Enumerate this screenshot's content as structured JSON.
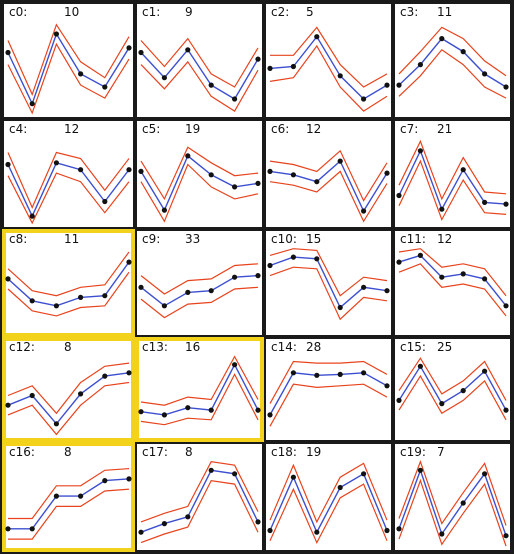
{
  "chart_data": {
    "type": "line",
    "layout": {
      "rows": 5,
      "cols": 4
    },
    "colors": {
      "mean_line": "#3c4fd0",
      "band_line": "#e8431c",
      "marker": "#111111",
      "highlight": "#f2d21b",
      "grid_background": "#1a1a1a"
    },
    "ylim": [
      0,
      1
    ],
    "clusters": [
      {
        "label": "c0:",
        "count": "10",
        "highlighted": false,
        "mean": [
          0.65,
          0.1,
          0.85,
          0.42,
          0.28,
          0.7
        ],
        "upper": [
          0.78,
          0.2,
          0.95,
          0.55,
          0.38,
          0.82
        ],
        "lower": [
          0.52,
          0.0,
          0.74,
          0.3,
          0.16,
          0.58
        ]
      },
      {
        "label": "c1:",
        "count": "9",
        "highlighted": false,
        "mean": [
          0.65,
          0.38,
          0.68,
          0.3,
          0.15,
          0.58
        ],
        "upper": [
          0.78,
          0.5,
          0.8,
          0.42,
          0.28,
          0.7
        ],
        "lower": [
          0.52,
          0.26,
          0.55,
          0.18,
          0.02,
          0.46
        ]
      },
      {
        "label": "c2:",
        "count": "5",
        "highlighted": false,
        "mean": [
          0.48,
          0.5,
          0.82,
          0.4,
          0.15,
          0.3
        ],
        "upper": [
          0.62,
          0.62,
          0.92,
          0.52,
          0.28,
          0.42
        ],
        "lower": [
          0.34,
          0.38,
          0.72,
          0.28,
          0.02,
          0.18
        ]
      },
      {
        "label": "c3:",
        "count": "11",
        "highlighted": false,
        "mean": [
          0.3,
          0.52,
          0.8,
          0.66,
          0.42,
          0.28
        ],
        "upper": [
          0.42,
          0.66,
          0.92,
          0.8,
          0.56,
          0.4
        ],
        "lower": [
          0.18,
          0.4,
          0.68,
          0.52,
          0.28,
          0.16
        ]
      },
      {
        "label": "c4:",
        "count": "12",
        "highlighted": false,
        "mean": [
          0.68,
          0.08,
          0.7,
          0.62,
          0.25,
          0.62
        ],
        "upper": [
          0.82,
          0.18,
          0.82,
          0.75,
          0.38,
          0.75
        ],
        "lower": [
          0.55,
          0.0,
          0.58,
          0.48,
          0.12,
          0.48
        ]
      },
      {
        "label": "c5:",
        "count": "19",
        "highlighted": false,
        "mean": [
          0.6,
          0.15,
          0.78,
          0.56,
          0.42,
          0.46
        ],
        "upper": [
          0.72,
          0.28,
          0.88,
          0.7,
          0.55,
          0.58
        ],
        "lower": [
          0.48,
          0.02,
          0.68,
          0.42,
          0.28,
          0.34
        ]
      },
      {
        "label": "c6:",
        "count": "12",
        "highlighted": false,
        "mean": [
          0.6,
          0.56,
          0.48,
          0.72,
          0.14,
          0.58
        ],
        "upper": [
          0.72,
          0.68,
          0.6,
          0.84,
          0.26,
          0.7
        ],
        "lower": [
          0.48,
          0.44,
          0.36,
          0.6,
          0.02,
          0.46
        ]
      },
      {
        "label": "c7:",
        "count": "21",
        "highlighted": false,
        "mean": [
          0.32,
          0.84,
          0.16,
          0.62,
          0.24,
          0.22
        ],
        "upper": [
          0.44,
          0.95,
          0.28,
          0.76,
          0.36,
          0.34
        ],
        "lower": [
          0.2,
          0.72,
          0.04,
          0.5,
          0.12,
          0.1
        ]
      },
      {
        "label": "c8:",
        "count": "11",
        "highlighted": true,
        "mean": [
          0.62,
          0.36,
          0.3,
          0.4,
          0.42,
          0.82
        ],
        "upper": [
          0.74,
          0.48,
          0.42,
          0.52,
          0.55,
          0.94
        ],
        "lower": [
          0.5,
          0.24,
          0.18,
          0.28,
          0.3,
          0.7
        ]
      },
      {
        "label": "c9:",
        "count": "33",
        "highlighted": false,
        "mean": [
          0.52,
          0.3,
          0.46,
          0.48,
          0.64,
          0.66
        ],
        "upper": [
          0.66,
          0.44,
          0.6,
          0.62,
          0.78,
          0.8
        ],
        "lower": [
          0.38,
          0.16,
          0.32,
          0.34,
          0.5,
          0.52
        ]
      },
      {
        "label": "c10:",
        "count": "15",
        "highlighted": false,
        "mean": [
          0.78,
          0.88,
          0.86,
          0.28,
          0.52,
          0.48
        ],
        "upper": [
          0.9,
          0.98,
          0.96,
          0.42,
          0.64,
          0.6
        ],
        "lower": [
          0.66,
          0.76,
          0.74,
          0.14,
          0.4,
          0.36
        ]
      },
      {
        "label": "c11:",
        "count": "12",
        "highlighted": false,
        "mean": [
          0.82,
          0.9,
          0.64,
          0.68,
          0.62,
          0.3
        ],
        "upper": [
          0.94,
          0.98,
          0.76,
          0.8,
          0.74,
          0.42
        ],
        "lower": [
          0.7,
          0.8,
          0.52,
          0.56,
          0.5,
          0.18
        ]
      },
      {
        "label": "c12:",
        "count": "8",
        "highlighted": true,
        "mean": [
          0.38,
          0.5,
          0.15,
          0.52,
          0.74,
          0.78
        ],
        "upper": [
          0.5,
          0.62,
          0.28,
          0.66,
          0.86,
          0.9
        ],
        "lower": [
          0.26,
          0.38,
          0.02,
          0.38,
          0.62,
          0.66
        ]
      },
      {
        "label": "c13:",
        "count": "16",
        "highlighted": true,
        "mean": [
          0.3,
          0.26,
          0.35,
          0.32,
          0.88,
          0.32
        ],
        "upper": [
          0.42,
          0.38,
          0.48,
          0.45,
          0.98,
          0.45
        ],
        "lower": [
          0.18,
          0.14,
          0.22,
          0.2,
          0.76,
          0.2
        ]
      },
      {
        "label": "c14:",
        "count": "28",
        "highlighted": false,
        "mean": [
          0.26,
          0.78,
          0.75,
          0.76,
          0.78,
          0.62
        ],
        "upper": [
          0.4,
          0.92,
          0.9,
          0.9,
          0.92,
          0.76
        ],
        "lower": [
          0.12,
          0.64,
          0.6,
          0.62,
          0.64,
          0.48
        ]
      },
      {
        "label": "c15:",
        "count": "25",
        "highlighted": false,
        "mean": [
          0.44,
          0.86,
          0.4,
          0.56,
          0.8,
          0.32
        ],
        "upper": [
          0.56,
          0.96,
          0.52,
          0.68,
          0.92,
          0.44
        ],
        "lower": [
          0.32,
          0.74,
          0.28,
          0.44,
          0.68,
          0.2
        ]
      },
      {
        "label": "c16:",
        "count": "8",
        "highlighted": true,
        "mean": [
          0.2,
          0.2,
          0.58,
          0.58,
          0.76,
          0.78
        ],
        "upper": [
          0.32,
          0.32,
          0.7,
          0.7,
          0.88,
          0.9
        ],
        "lower": [
          0.08,
          0.08,
          0.46,
          0.46,
          0.64,
          0.66
        ]
      },
      {
        "label": "c17:",
        "count": "8",
        "highlighted": false,
        "mean": [
          0.16,
          0.26,
          0.34,
          0.88,
          0.84,
          0.28
        ],
        "upper": [
          0.28,
          0.38,
          0.46,
          0.98,
          0.94,
          0.4
        ],
        "lower": [
          0.04,
          0.14,
          0.22,
          0.76,
          0.72,
          0.16
        ]
      },
      {
        "label": "c18:",
        "count": "19",
        "highlighted": false,
        "mean": [
          0.18,
          0.8,
          0.16,
          0.68,
          0.84,
          0.18
        ],
        "upper": [
          0.3,
          0.94,
          0.28,
          0.8,
          0.96,
          0.3
        ],
        "lower": [
          0.06,
          0.66,
          0.04,
          0.56,
          0.72,
          0.06
        ]
      },
      {
        "label": "c19:",
        "count": "7",
        "highlighted": false,
        "mean": [
          0.2,
          0.88,
          0.14,
          0.5,
          0.84,
          0.12
        ],
        "upper": [
          0.32,
          0.98,
          0.26,
          0.62,
          0.96,
          0.24
        ],
        "lower": [
          0.08,
          0.76,
          0.02,
          0.38,
          0.72,
          0.0
        ]
      }
    ]
  }
}
